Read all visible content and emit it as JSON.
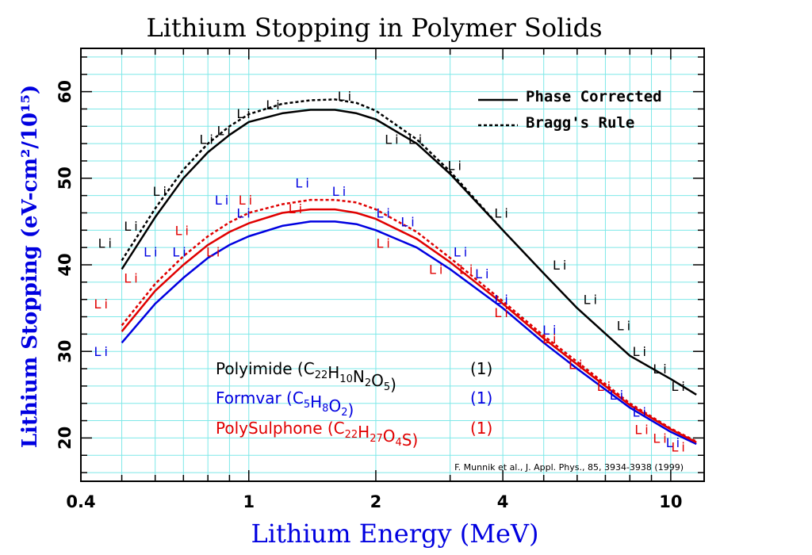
{
  "chart_data": {
    "type": "line",
    "title": "Lithium Stopping in Polymer Solids",
    "xlabel": "Lithium Energy (MeV)",
    "ylabel": "Lithium Stopping (eV-cm²/10¹⁵)",
    "xscale": "log",
    "xlim": [
      0.4,
      12
    ],
    "ylim": [
      15,
      65
    ],
    "x_ticks": [
      0.4,
      1,
      2,
      4,
      10
    ],
    "x_tick_labels": [
      "0.4",
      "1",
      "2",
      "4",
      "10"
    ],
    "y_ticks": [
      20,
      30,
      40,
      50,
      60
    ],
    "y_tick_labels": [
      "20",
      "30",
      "40",
      "50",
      "60"
    ],
    "grid": true,
    "legend": {
      "placement": "top-right",
      "entries": [
        {
          "label": "Phase Corrected",
          "style": "solid"
        },
        {
          "label": "Bragg's Rule",
          "style": "dashed"
        }
      ]
    },
    "material_labels": [
      {
        "base": "Polyimide",
        "formula": [
          [
            "C",
            "22"
          ],
          [
            "H",
            "10"
          ],
          [
            "N",
            "2"
          ],
          [
            "O",
            "5"
          ]
        ],
        "ref": "(1)",
        "color": "#000000"
      },
      {
        "base": "Formvar",
        "formula": [
          [
            "C",
            "5"
          ],
          [
            "H",
            "8"
          ],
          [
            "O",
            "2"
          ]
        ],
        "ref": "(1)",
        "color": "#0000e0"
      },
      {
        "base": "PolySulphone",
        "formula": [
          [
            "C",
            "22"
          ],
          [
            "H",
            "27"
          ],
          [
            "O",
            "4"
          ],
          [
            "S",
            ""
          ]
        ],
        "ref": "(1)",
        "color": "#e00000"
      }
    ],
    "annotation": "F. Munnik et al., J. Appl. Phys., 85, 3934-3938 (1999)",
    "point_marker": "Li",
    "series": [
      {
        "name": "Polyimide",
        "color": "#000000",
        "style": "solid",
        "x": [
          0.5,
          0.6,
          0.7,
          0.8,
          0.9,
          1.0,
          1.2,
          1.4,
          1.6,
          1.8,
          2.0,
          2.5,
          3.0,
          4.0,
          5.0,
          6.0,
          8.0,
          10.0,
          11.5
        ],
        "y": [
          39.5,
          45.5,
          50.0,
          53.0,
          55.0,
          56.5,
          57.5,
          57.9,
          57.9,
          57.5,
          56.8,
          54.0,
          50.5,
          44.0,
          39.0,
          35.0,
          29.5,
          26.8,
          25.0
        ]
      },
      {
        "name": "Polyimide",
        "color": "#000000",
        "style": "dashed",
        "x": [
          0.5,
          0.6,
          0.7,
          0.8,
          0.9,
          1.0,
          1.2,
          1.4,
          1.6,
          1.8,
          2.0,
          2.5,
          3.0,
          4.0
        ],
        "y": [
          40.5,
          46.5,
          51.0,
          54.0,
          56.0,
          57.4,
          58.6,
          59.0,
          59.1,
          58.7,
          57.8,
          54.5,
          50.8,
          44.0
        ]
      },
      {
        "name": "Formvar",
        "color": "#0000e0",
        "style": "solid",
        "x": [
          0.5,
          0.6,
          0.7,
          0.8,
          0.9,
          1.0,
          1.2,
          1.4,
          1.6,
          1.8,
          2.0,
          2.5,
          3.0,
          4.0,
          5.0,
          6.0,
          8.0,
          10.0,
          11.5
        ],
        "y": [
          31.0,
          35.5,
          38.5,
          40.8,
          42.3,
          43.3,
          44.5,
          45.0,
          45.0,
          44.7,
          44.0,
          42.0,
          39.5,
          35.0,
          31.0,
          28.0,
          23.5,
          20.7,
          19.3
        ]
      },
      {
        "name": "PolySulphone",
        "color": "#e00000",
        "style": "solid",
        "x": [
          0.5,
          0.6,
          0.7,
          0.8,
          0.9,
          1.0,
          1.2,
          1.4,
          1.6,
          1.8,
          2.0,
          2.5,
          3.0,
          4.0,
          5.0,
          6.0,
          8.0,
          10.0,
          11.5
        ],
        "y": [
          32.3,
          37.0,
          40.0,
          42.3,
          43.8,
          44.8,
          46.0,
          46.4,
          46.4,
          46.0,
          45.3,
          43.0,
          40.3,
          35.5,
          31.5,
          28.5,
          23.8,
          21.0,
          19.5
        ]
      },
      {
        "name": "PolySulphone",
        "color": "#e00000",
        "style": "dashed",
        "x": [
          0.5,
          0.6,
          0.7,
          0.8,
          0.9,
          1.0,
          1.2,
          1.4,
          1.6,
          1.8,
          2.0,
          2.5,
          3.0,
          4.0,
          5.0,
          6.0,
          8.0,
          10.0,
          11.5
        ],
        "y": [
          33.0,
          37.8,
          41.0,
          43.3,
          44.9,
          46.0,
          47.0,
          47.5,
          47.5,
          47.2,
          46.4,
          43.8,
          40.8,
          35.8,
          31.8,
          28.8,
          24.0,
          21.1,
          19.6
        ]
      }
    ],
    "points": [
      {
        "color": "#000000",
        "x": [
          0.46,
          0.53,
          0.62,
          0.8,
          0.88,
          0.98,
          1.15,
          1.7,
          2.2,
          2.5,
          3.1,
          4.0,
          5.5,
          6.5,
          7.8,
          8.5,
          9.5,
          10.5
        ],
        "y": [
          42.5,
          44.5,
          48.5,
          54.5,
          55.5,
          57.5,
          58.5,
          59.5,
          54.5,
          54.5,
          51.5,
          46.0,
          40.0,
          36.0,
          33.0,
          30.0,
          28.0,
          26.0
        ]
      },
      {
        "color": "#0000e0",
        "x": [
          0.45,
          0.59,
          0.69,
          0.87,
          0.98,
          1.35,
          1.65,
          2.1,
          2.4,
          3.2,
          3.6,
          4.0,
          5.2,
          6.0,
          7.5,
          8.5,
          10.2
        ],
        "y": [
          30.0,
          41.5,
          41.5,
          47.5,
          46.0,
          49.5,
          48.5,
          46.0,
          45.0,
          41.5,
          39.0,
          36.0,
          32.5,
          28.5,
          25.0,
          23.0,
          19.5
        ]
      },
      {
        "color": "#e00000",
        "x": [
          0.45,
          0.53,
          0.7,
          0.83,
          0.99,
          1.3,
          2.1,
          2.8,
          3.3,
          4.0,
          5.2,
          6.0,
          7.0,
          8.6,
          9.5,
          10.5
        ],
        "y": [
          35.5,
          38.5,
          44.0,
          41.5,
          47.5,
          46.5,
          42.5,
          39.5,
          39.5,
          34.5,
          31.5,
          28.5,
          26.0,
          21.0,
          20.0,
          19.0
        ]
      }
    ]
  }
}
